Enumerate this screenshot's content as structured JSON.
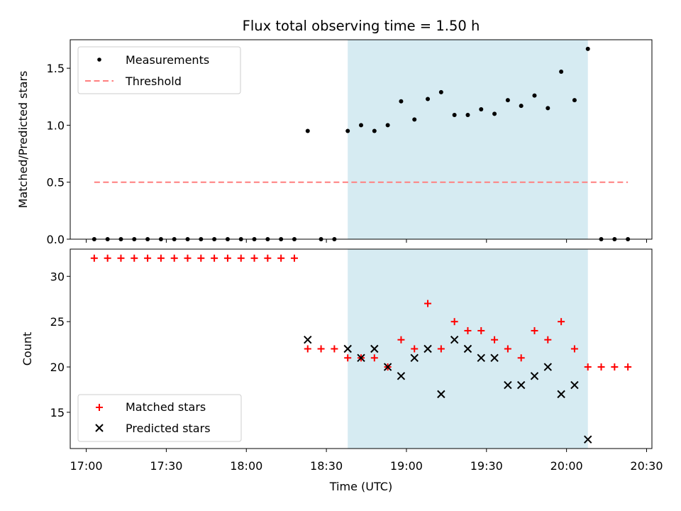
{
  "chart_data": [
    {
      "type": "scatter",
      "title": "Flux total observing time = 1.50 h",
      "xlabel": "",
      "ylabel": "Matched/Predicted stars",
      "ylim": [
        0,
        1.75
      ],
      "yticks": [
        "0.0",
        "0.5",
        "1.0",
        "1.5"
      ],
      "grid": false,
      "legend_placement": "top-left",
      "highlight_span": [
        "18:38",
        "20:08"
      ],
      "colors": {
        "measurements": "#000000",
        "threshold": "#ff7f7f",
        "span": "#add8e6"
      },
      "series": [
        {
          "name": "Measurements",
          "marker": "dot",
          "x": [
            "17:03",
            "17:08",
            "17:13",
            "17:18",
            "17:23",
            "17:28",
            "17:33",
            "17:38",
            "17:43",
            "17:48",
            "17:53",
            "17:58",
            "18:03",
            "18:08",
            "18:13",
            "18:18",
            "18:23",
            "18:28",
            "18:33",
            "18:38",
            "18:43",
            "18:48",
            "18:53",
            "18:58",
            "19:03",
            "19:08",
            "19:13",
            "19:18",
            "19:23",
            "19:28",
            "19:33",
            "19:38",
            "19:43",
            "19:48",
            "19:53",
            "19:58",
            "20:03",
            "20:08",
            "20:13",
            "20:18",
            "20:23"
          ],
          "y": [
            0,
            0,
            0,
            0,
            0,
            0,
            0,
            0,
            0,
            0,
            0,
            0,
            0,
            0,
            0,
            0,
            0.95,
            0,
            0,
            0.95,
            1.0,
            0.95,
            1.0,
            1.21,
            1.05,
            1.23,
            1.29,
            1.09,
            1.09,
            1.14,
            1.1,
            1.22,
            1.17,
            1.26,
            1.15,
            1.47,
            1.22,
            1.67,
            0,
            0,
            0
          ]
        },
        {
          "name": "Threshold",
          "style": "dashed",
          "x": [
            "17:03",
            "20:23"
          ],
          "y": [
            0.5,
            0.5
          ]
        }
      ]
    },
    {
      "type": "scatter",
      "title": "",
      "xlabel": "Time (UTC)",
      "ylabel": "Count",
      "ylim": [
        11,
        33
      ],
      "yticks": [
        "15",
        "20",
        "25",
        "30"
      ],
      "xticks": [
        "17:00",
        "17:30",
        "18:00",
        "18:30",
        "19:00",
        "19:30",
        "20:00",
        "20:30"
      ],
      "grid": false,
      "legend_placement": "bottom-left",
      "highlight_span": [
        "18:38",
        "20:08"
      ],
      "colors": {
        "matched": "#ff0000",
        "predicted": "#000000",
        "span": "#add8e6"
      },
      "series": [
        {
          "name": "Matched stars",
          "marker": "plus",
          "x": [
            "17:03",
            "17:08",
            "17:13",
            "17:18",
            "17:23",
            "17:28",
            "17:33",
            "17:38",
            "17:43",
            "17:48",
            "17:53",
            "17:58",
            "18:03",
            "18:08",
            "18:13",
            "18:18",
            "18:23",
            "18:28",
            "18:33",
            "18:38",
            "18:43",
            "18:48",
            "18:53",
            "18:58",
            "19:03",
            "19:08",
            "19:13",
            "19:18",
            "19:23",
            "19:28",
            "19:33",
            "19:38",
            "19:43",
            "19:48",
            "19:53",
            "19:58",
            "20:03",
            "20:08",
            "20:13",
            "20:18",
            "20:23"
          ],
          "y": [
            32,
            32,
            32,
            32,
            32,
            32,
            32,
            32,
            32,
            32,
            32,
            32,
            32,
            32,
            32,
            32,
            22,
            22,
            22,
            21,
            21,
            21,
            20,
            23,
            22,
            27,
            22,
            25,
            24,
            24,
            23,
            22,
            21,
            24,
            23,
            25,
            22,
            20,
            20,
            20,
            20
          ]
        },
        {
          "name": "Predicted stars",
          "marker": "x",
          "x": [
            "18:23",
            "18:38",
            "18:43",
            "18:48",
            "18:53",
            "18:58",
            "19:03",
            "19:08",
            "19:13",
            "19:18",
            "19:23",
            "19:28",
            "19:33",
            "19:38",
            "19:43",
            "19:48",
            "19:53",
            "19:58",
            "20:03",
            "20:08"
          ],
          "y": [
            23,
            22,
            21,
            22,
            20,
            19,
            21,
            22,
            17,
            23,
            22,
            21,
            21,
            18,
            18,
            19,
            20,
            17,
            18,
            12
          ]
        }
      ]
    }
  ]
}
